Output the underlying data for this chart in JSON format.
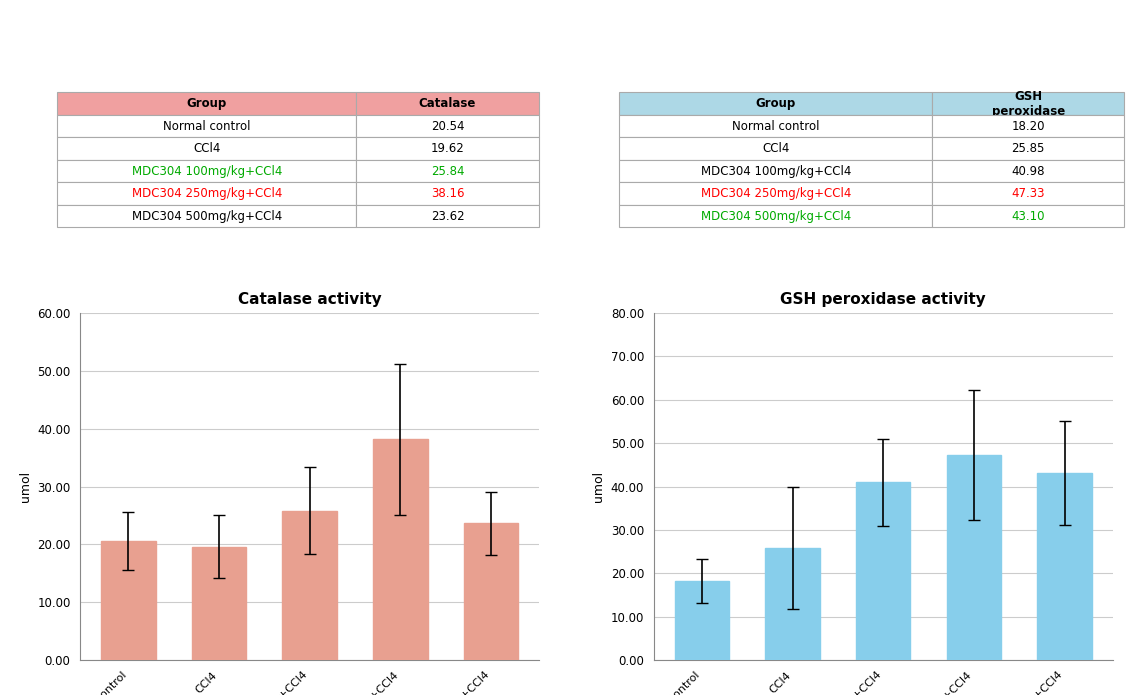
{
  "catalase": {
    "groups": [
      "Normal control",
      "CCl4",
      "MDC304 100mg/kg+CCl4",
      "MDC304 250mg/kg+CCl4",
      "MDC304 500mg/kg+CCl4"
    ],
    "values": [
      20.54,
      19.62,
      25.84,
      38.16,
      23.62
    ],
    "errors": [
      5.0,
      5.5,
      7.5,
      13.0,
      5.5
    ],
    "title": "Catalase activity",
    "ylabel": "umol",
    "ylim": [
      0,
      60
    ],
    "yticks": [
      0,
      10,
      20,
      30,
      40,
      50,
      60
    ],
    "ytick_labels": [
      "0.00",
      "10.00",
      "20.00",
      "30.00",
      "40.00",
      "50.00",
      "60.00"
    ],
    "bar_color": "#e8a090",
    "table_header_color": "#f0a0a0",
    "table_col2_header": "Catalase",
    "row_colors": [
      "black",
      "black",
      "#00aa00",
      "#ff0000",
      "black"
    ],
    "row_values_colors": [
      "black",
      "black",
      "#00aa00",
      "#ff0000",
      "black"
    ]
  },
  "gsh": {
    "groups": [
      "Normal control",
      "CCl4",
      "MDC304 100mg/kg+CCl4",
      "MDC304 250mg/kg+CCl4",
      "MDC304 500mg/kg+CCl4"
    ],
    "values": [
      18.2,
      25.85,
      40.98,
      47.33,
      43.1
    ],
    "errors": [
      5.0,
      14.0,
      10.0,
      15.0,
      12.0
    ],
    "title": "GSH peroxidase activity",
    "ylabel": "umol",
    "ylim": [
      0,
      80
    ],
    "yticks": [
      0,
      10,
      20,
      30,
      40,
      50,
      60,
      70,
      80
    ],
    "ytick_labels": [
      "0.00",
      "10.00",
      "20.00",
      "30.00",
      "40.00",
      "50.00",
      "60.00",
      "70.00",
      "80.00"
    ],
    "bar_color": "#87ceeb",
    "table_header_color": "#add8e6",
    "table_col2_header": "GSH\nperoxidase",
    "row_colors": [
      "black",
      "black",
      "black",
      "#ff0000",
      "#00aa00"
    ],
    "row_values_colors": [
      "black",
      "black",
      "black",
      "#ff0000",
      "#00aa00"
    ]
  },
  "background_color": "#ffffff"
}
